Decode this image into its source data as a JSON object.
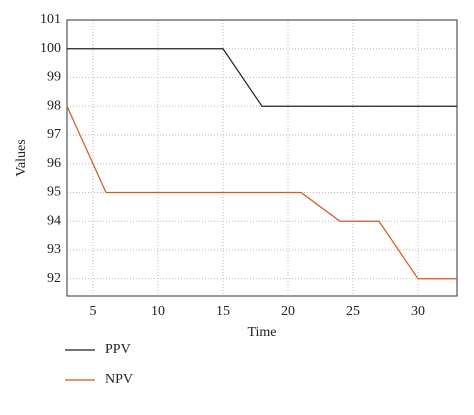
{
  "chart_data": {
    "type": "line",
    "xlabel": "Time",
    "ylabel": "Values",
    "xlim": [
      3,
      33
    ],
    "ylim": [
      91.4,
      101
    ],
    "xticks": [
      5,
      10,
      15,
      20,
      25,
      30
    ],
    "yticks": [
      92,
      93,
      94,
      95,
      96,
      97,
      98,
      99,
      100,
      101
    ],
    "grid": true,
    "series": [
      {
        "name": "PPV",
        "color": "#222222",
        "x": [
          3,
          15,
          18,
          33
        ],
        "values": [
          100,
          100,
          98,
          98
        ]
      },
      {
        "name": "NPV",
        "color": "#d9541e",
        "x": [
          3,
          6,
          21,
          24,
          27,
          30,
          33
        ],
        "values": [
          98,
          95,
          95,
          94,
          94,
          92,
          92
        ]
      }
    ]
  }
}
